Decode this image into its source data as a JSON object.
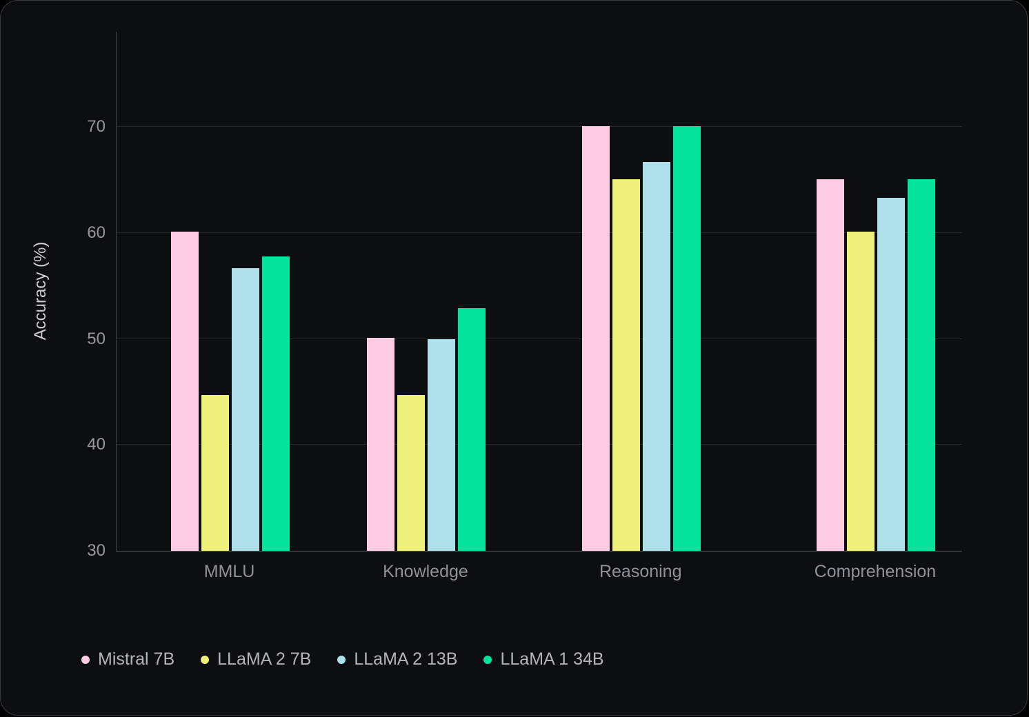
{
  "card": {
    "background": "#0d0e10",
    "border_color": "#3a3b40"
  },
  "chart_data": {
    "type": "bar",
    "title": "",
    "xlabel": "",
    "ylabel": "Accuracy (%)",
    "categories": [
      "MMLU",
      "Knowledge",
      "Reasoning",
      "Comprehension"
    ],
    "series": [
      {
        "name": "Mistral 7B",
        "color": "#fccde2",
        "values": [
          60.1,
          50.1,
          70.1,
          65.1
        ]
      },
      {
        "name": "LLaMA 2 7B",
        "color": "#eef07a",
        "values": [
          44.7,
          44.7,
          65.1,
          60.1
        ]
      },
      {
        "name": "LLaMA 2 13B",
        "color": "#ade0e8",
        "values": [
          56.7,
          50.0,
          66.7,
          63.3
        ]
      },
      {
        "name": "LLaMA 1 34B",
        "color": "#04e49b",
        "values": [
          57.8,
          52.9,
          70.1,
          65.1
        ]
      }
    ],
    "ylim": [
      30,
      79
    ],
    "yticks": [
      30,
      40,
      50,
      60,
      70
    ],
    "gridlines": [
      40,
      50,
      60,
      70
    ],
    "grid": "horizontal",
    "legend_position": "bottom-left",
    "axis_text_color": "#97979f",
    "gridline_color": "#27282c"
  }
}
